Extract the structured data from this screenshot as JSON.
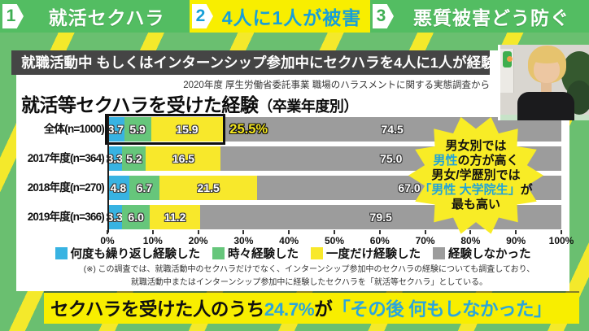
{
  "header": {
    "items": [
      {
        "number": "1",
        "label": "就活セクハラ"
      },
      {
        "number": "2",
        "label": "4人に1人が被害"
      },
      {
        "number": "3",
        "label": "悪質被害どう防ぐ"
      }
    ]
  },
  "title_bar": "就職活動中 もしくはインターンシップ参加中にセクハラを4人に1人が経験",
  "source": "2020年度 厚生労働省委託事業 職場のハラスメントに関する実態調査から",
  "chart_data": {
    "type": "bar",
    "stacked": true,
    "orientation": "horizontal",
    "title": "就活等セクハラを受けた経験",
    "title_suffix": "（卒業年度別）",
    "categories": [
      "全体(n=1000)",
      "2017年度(n=364)",
      "2018年度(n=270)",
      "2019年度(n=366)"
    ],
    "series": [
      {
        "name": "何度も繰り返し経験した",
        "color": "#38b3e2",
        "values": [
          3.7,
          3.3,
          4.8,
          3.3
        ]
      },
      {
        "name": "時々経験した",
        "color": "#66c67b",
        "values": [
          5.9,
          5.2,
          6.7,
          6.0
        ]
      },
      {
        "name": "一度だけ経験した",
        "color": "#f8e82b",
        "values": [
          15.9,
          16.5,
          21.5,
          11.2
        ]
      },
      {
        "name": "経験しなかった",
        "color": "#9c9c9c",
        "values": [
          74.5,
          75.0,
          67.0,
          79.5
        ]
      }
    ],
    "xlim": [
      0,
      100
    ],
    "x_ticks": [
      "0%",
      "10%",
      "20%",
      "30%",
      "40%",
      "50%",
      "60%",
      "70%",
      "80%",
      "90%",
      "100%"
    ],
    "highlight": {
      "row": 0,
      "span_pct": 25.5,
      "label": "25.5%"
    },
    "legend_position": "bottom",
    "grid": false
  },
  "note": {
    "lines": [
      "(※) この調査では、就職活動中のセクハラだけでなく、インターンシップ参加中のセクハラの経験についても調査しており、",
      "就職活動中またはインターンシップ参加中に経験したセクハラを「就活等セクハラ」としている。"
    ]
  },
  "callout": {
    "lines": [
      [
        {
          "t": "男女別では",
          "c": "k"
        }
      ],
      [
        {
          "t": "男性",
          "c": "b"
        },
        {
          "t": "の方が高く",
          "c": "k"
        }
      ],
      [
        {
          "t": "男女/学歴別では",
          "c": "k"
        }
      ],
      [
        {
          "t": "「男性 大学院生」",
          "c": "b"
        },
        {
          "t": "が",
          "c": "k"
        }
      ],
      [
        {
          "t": "最も高い",
          "c": "k"
        }
      ]
    ]
  },
  "banner": {
    "parts": [
      {
        "t": "セクハラを受けた人のうち",
        "c": "k"
      },
      {
        "t": "24.7%",
        "c": "b"
      },
      {
        "t": "が",
        "c": "k"
      },
      {
        "t": "「その後 何もしなかった」",
        "c": "b"
      }
    ]
  },
  "colors": {
    "header_green": "#53bd62",
    "header_yellow": "#f8ee00",
    "accent_blue": "#1fa3d9",
    "bg_green": "#6abf70",
    "stripe_yellow": "#f4e92b",
    "title_bar_bg": "#454545",
    "banner_yellow": "#f8ee00",
    "callout_yellow": "#f8ec26",
    "highlight_label_yellow": "#f2e41d"
  }
}
